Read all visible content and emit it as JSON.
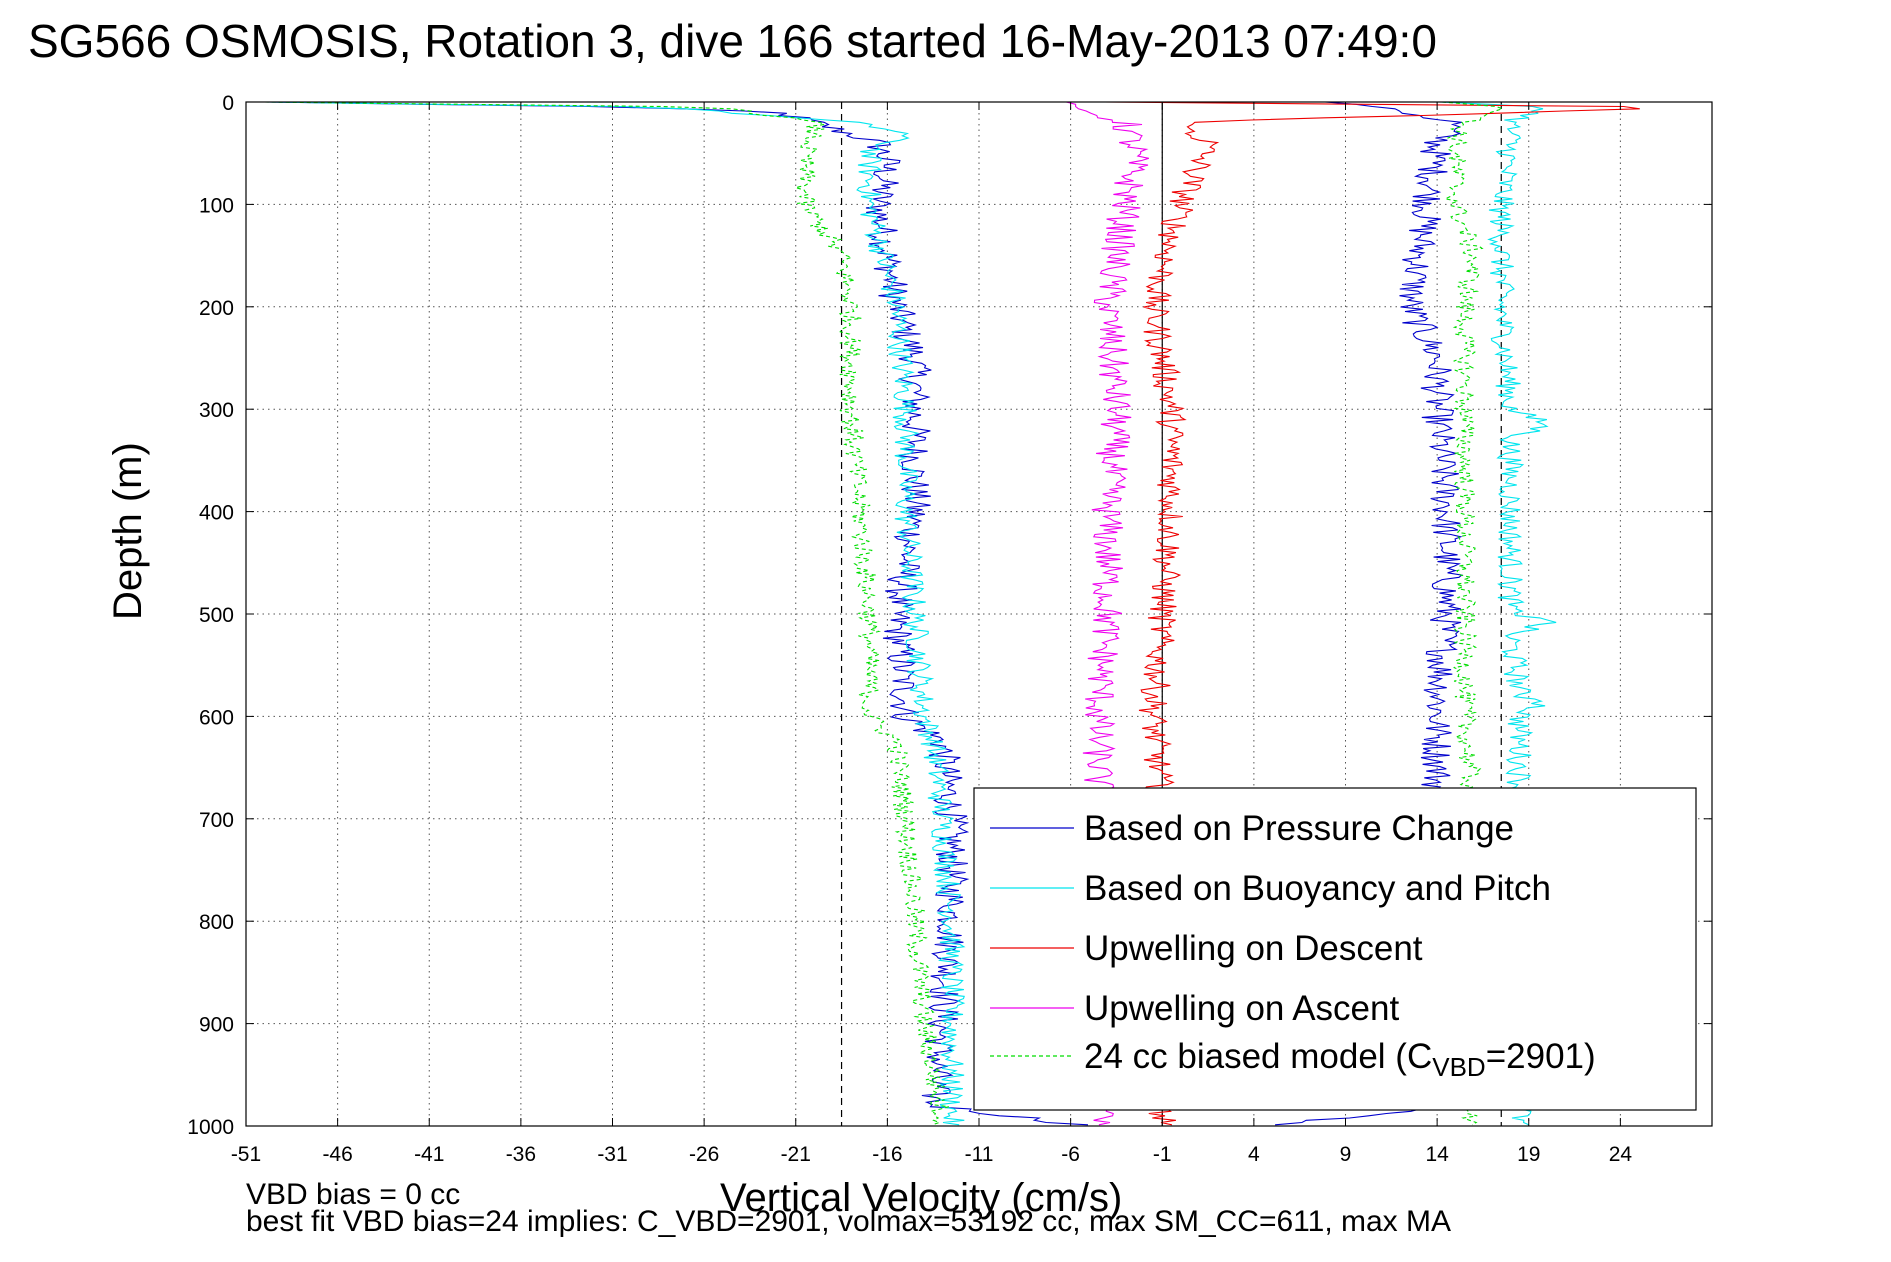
{
  "chart_data": {
    "type": "line",
    "title": "SG566 OSMOSIS, Rotation 3, dive 166 started 16-May-2013 07:49:0",
    "xlabel": "Vertical Velocity (cm/s)",
    "ylabel": "Depth (m)",
    "xlim": [
      -51,
      29
    ],
    "ylim": [
      0,
      1000
    ],
    "y_reversed": true,
    "grid": true,
    "x_ticks": [
      -51,
      -46,
      -41,
      -36,
      -31,
      -26,
      -21,
      -16,
      -11,
      -6,
      -1,
      4,
      9,
      14,
      19,
      24
    ],
    "y_ticks": [
      0,
      100,
      200,
      300,
      400,
      500,
      600,
      700,
      800,
      900,
      1000
    ],
    "legend_position": "bottom-right",
    "reference_lines": [
      {
        "x": -18.5,
        "style": "dashed",
        "color": "#000000"
      },
      {
        "x": -1,
        "style": "solid",
        "color": "#000000"
      },
      {
        "x": 17.5,
        "style": "dashed",
        "color": "#000000"
      }
    ],
    "series": [
      {
        "name": "Based on Pressure Change",
        "color": "#0000cc",
        "style": "solid",
        "noise": 0.9,
        "descent": {
          "depth": [
            0,
            5,
            10,
            20,
            40,
            60,
            100,
            150,
            200,
            250,
            300,
            400,
            500,
            600,
            625,
            700,
            800,
            900,
            980,
            1000
          ],
          "v": [
            -50,
            -30,
            -22,
            -20,
            -16.5,
            -16,
            -16.5,
            -16,
            -15.5,
            -14.5,
            -14.5,
            -14.5,
            -15.5,
            -15,
            -13,
            -12.5,
            -12.5,
            -13,
            -13.5,
            -5
          ]
        },
        "ascent": {
          "depth": [
            0,
            5,
            20,
            40,
            100,
            150,
            200,
            250,
            300,
            400,
            500,
            600,
            700,
            800,
            900,
            980,
            1000
          ],
          "v": [
            8,
            11,
            15,
            14,
            13.5,
            13,
            12.5,
            14,
            14,
            14.5,
            14.5,
            14,
            14,
            14.5,
            14.5,
            14.5,
            5
          ]
        }
      },
      {
        "name": "Based on Buoyancy and Pitch",
        "color": "#00e5ee",
        "style": "solid",
        "noise": 0.7,
        "descent": {
          "depth": [
            0,
            5,
            20,
            30,
            50,
            100,
            200,
            300,
            400,
            500,
            600,
            625,
            700,
            800,
            900,
            1000
          ],
          "v": [
            -50,
            -28,
            -18,
            -15,
            -17,
            -17,
            -15.5,
            -15,
            -15,
            -14.5,
            -14,
            -13.5,
            -13,
            -12.5,
            -12.5,
            -12.5
          ]
        },
        "ascent": {
          "depth": [
            0,
            5,
            20,
            40,
            100,
            200,
            300,
            315,
            330,
            400,
            500,
            505,
            520,
            580,
            585,
            600,
            700,
            800,
            900,
            1000
          ],
          "v": [
            14,
            20,
            18,
            18,
            17.5,
            17.5,
            18,
            20,
            18,
            18,
            18,
            20.5,
            18,
            18.5,
            20,
            18.5,
            18.5,
            18.5,
            18.5,
            18.5
          ]
        }
      },
      {
        "name": "Upwelling on Descent",
        "color": "#ee0000",
        "style": "solid",
        "noise": 0.8,
        "descent": {
          "depth": [
            0,
            5,
            20,
            40,
            60,
            100,
            200,
            300,
            400,
            500,
            600,
            700,
            800,
            900,
            980,
            1000
          ],
          "v": [
            -4,
            28,
            0,
            1.5,
            1,
            0,
            -1.5,
            -0.5,
            -0.5,
            -1,
            -1.5,
            -1,
            -1,
            -1,
            -1,
            -1
          ]
        }
      },
      {
        "name": "Upwelling on Ascent",
        "color": "#ee00ee",
        "style": "solid",
        "noise": 0.9,
        "ascent": {
          "depth": [
            0,
            5,
            10,
            20,
            50,
            100,
            200,
            300,
            400,
            500,
            600,
            700,
            800,
            900,
            1000
          ],
          "v": [
            -6,
            -6,
            -5,
            -3,
            -2.5,
            -3,
            -4,
            -3.5,
            -4,
            -4,
            -4.5,
            -4.5,
            -4.5,
            -4.5,
            -4.5
          ]
        }
      },
      {
        "name": "24 cc biased model (C_VBD=2901)",
        "color": "#00dd00",
        "style": "dashed",
        "noise": 0.6,
        "descent": {
          "depth": [
            0,
            5,
            20,
            30,
            50,
            100,
            150,
            200,
            300,
            400,
            500,
            600,
            625,
            700,
            800,
            900,
            950,
            1000
          ],
          "v": [
            -50,
            -25,
            -20,
            -20,
            -20.5,
            -20.5,
            -18.5,
            -18,
            -18,
            -17.5,
            -17,
            -17,
            -15.5,
            -15,
            -14.5,
            -14,
            -13.5,
            -13
          ]
        },
        "ascent": {
          "depth": [
            0,
            5,
            20,
            40,
            100,
            150,
            200,
            300,
            400,
            500,
            600,
            700,
            800,
            900,
            1000
          ],
          "v": [
            14,
            18,
            15.5,
            15,
            15,
            16,
            15.5,
            15.5,
            15.5,
            15.5,
            15.5,
            16,
            16,
            16,
            16
          ]
        }
      }
    ]
  },
  "legend": {
    "entries": [
      {
        "label": "Based on Pressure Change",
        "color": "#0000cc",
        "style": "solid"
      },
      {
        "label": "Based on Buoyancy and Pitch",
        "color": "#00e5ee",
        "style": "solid"
      },
      {
        "label": "Upwelling on Descent",
        "color": "#ee0000",
        "style": "solid"
      },
      {
        "label": "Upwelling on Ascent",
        "color": "#ee00ee",
        "style": "solid"
      },
      {
        "label": "24 cc biased model (C",
        "sub": "VBD",
        "suffix": "=2901)",
        "color": "#00dd00",
        "style": "dashed"
      }
    ]
  },
  "footer": {
    "line1": "VBD bias = 0 cc",
    "line2": "best fit VBD bias=24 implies: C_VBD=2901, volmax=53192 cc, max SM_CC=611, max MA"
  }
}
